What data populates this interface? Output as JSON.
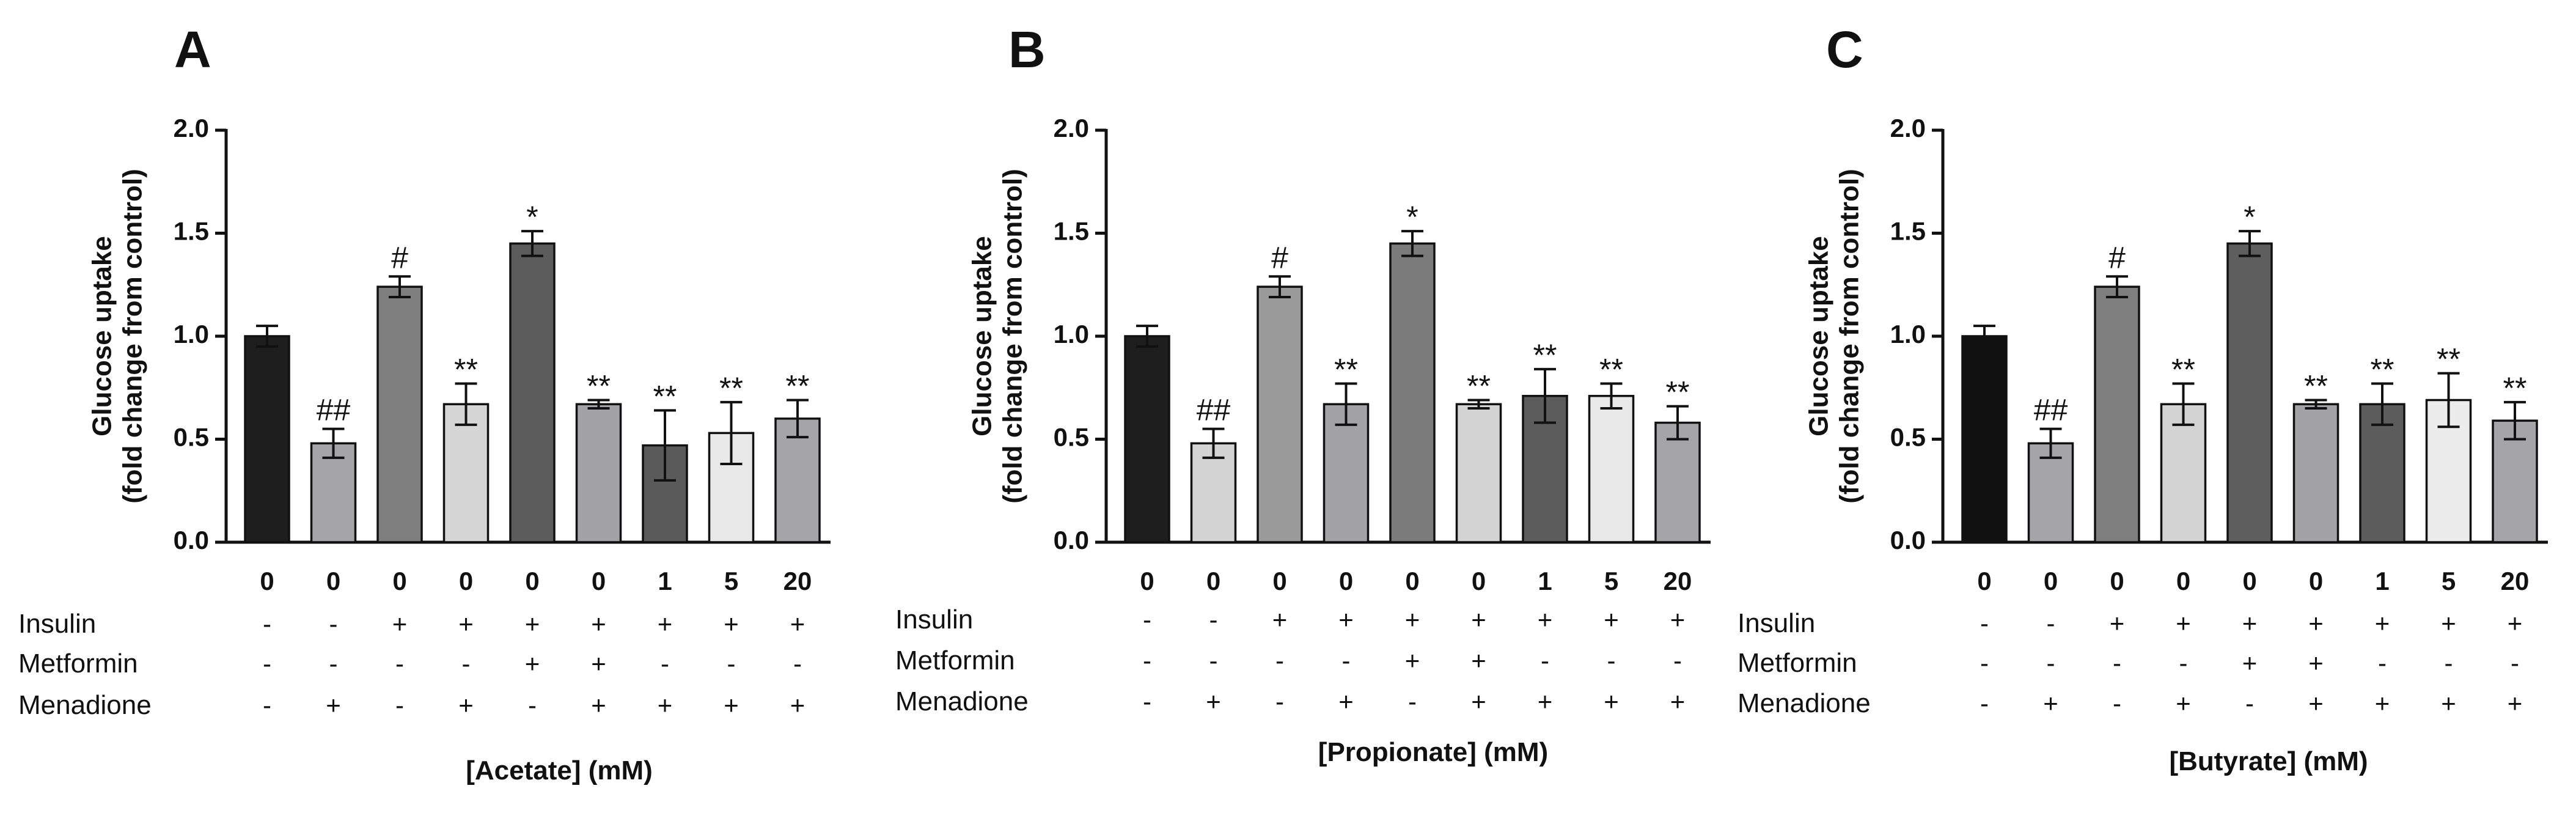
{
  "chart_data": [
    {
      "type": "bar",
      "panel_letter": "A",
      "ylabel_line1": "Glucose uptake",
      "ylabel_line2": "(fold change from control)",
      "ylim": [
        0,
        2.0
      ],
      "yticks": [
        "0.0",
        "0.5",
        "1.0",
        "1.5",
        "2.0"
      ],
      "ytick_values": [
        0,
        0.5,
        1.0,
        1.5,
        2.0
      ],
      "categories": [
        "0",
        "0",
        "0",
        "0",
        "0",
        "0",
        "1",
        "5",
        "20"
      ],
      "values": [
        1.0,
        0.48,
        1.24,
        0.67,
        1.45,
        0.67,
        0.47,
        0.53,
        0.6
      ],
      "errors": [
        0.05,
        0.07,
        0.05,
        0.1,
        0.06,
        0.02,
        0.17,
        0.15,
        0.09
      ],
      "bar_colors": [
        "#1e1e1e",
        "#a5a5a8",
        "#7e7e7e",
        "#d6d6d6",
        "#5c5c5c",
        "#a3a3a6",
        "#5a5a5a",
        "#e8e8e8",
        "#a5a5a8"
      ],
      "significance": [
        "",
        "##",
        "#",
        "**",
        "*",
        "**",
        "**",
        "**",
        "**"
      ],
      "row_labels": [
        "Insulin",
        "Metformin",
        "Menadione"
      ],
      "insulin": [
        "-",
        "-",
        "+",
        "+",
        "+",
        "+",
        "+",
        "+",
        "+"
      ],
      "metformin": [
        "-",
        "-",
        "-",
        "-",
        "+",
        "+",
        "-",
        "-",
        "-"
      ],
      "menadione": [
        "-",
        "+",
        "-",
        "+",
        "-",
        "+",
        "+",
        "+",
        "+"
      ],
      "xlabel": "[Acetate] (mM)"
    },
    {
      "type": "bar",
      "panel_letter": "B",
      "ylabel_line1": "Glucose uptake",
      "ylabel_line2": "(fold change from control)",
      "ylim": [
        0,
        2.0
      ],
      "yticks": [
        "0.0",
        "0.5",
        "1.0",
        "1.5",
        "2.0"
      ],
      "ytick_values": [
        0,
        0.5,
        1.0,
        1.5,
        2.0
      ],
      "categories": [
        "0",
        "0",
        "0",
        "0",
        "0",
        "0",
        "1",
        "5",
        "20"
      ],
      "values": [
        1.0,
        0.48,
        1.24,
        0.67,
        1.45,
        0.67,
        0.71,
        0.71,
        0.58
      ],
      "errors": [
        0.05,
        0.07,
        0.05,
        0.1,
        0.06,
        0.02,
        0.13,
        0.06,
        0.08
      ],
      "bar_colors": [
        "#1e1e1e",
        "#d3d3d3",
        "#9a9a9a",
        "#a3a3a6",
        "#7b7b7b",
        "#d3d3d3",
        "#5c5c5c",
        "#e8e8e8",
        "#a5a5a8"
      ],
      "significance": [
        "",
        "##",
        "#",
        "**",
        "*",
        "**",
        "**",
        "**",
        "**"
      ],
      "row_labels": [
        "Insulin",
        "Metformin",
        "Menadione"
      ],
      "insulin": [
        "-",
        "-",
        "+",
        "+",
        "+",
        "+",
        "+",
        "+",
        "+"
      ],
      "metformin": [
        "-",
        "-",
        "-",
        "-",
        "+",
        "+",
        "-",
        "-",
        "-"
      ],
      "menadione": [
        "-",
        "+",
        "-",
        "+",
        "-",
        "+",
        "+",
        "+",
        "+"
      ],
      "xlabel": "[Propionate] (mM)"
    },
    {
      "type": "bar",
      "panel_letter": "C",
      "ylabel_line1": "Glucose uptake",
      "ylabel_line2": "(fold change from control)",
      "ylim": [
        0,
        2.0
      ],
      "yticks": [
        "0.0",
        "0.5",
        "1.0",
        "1.5",
        "2.0"
      ],
      "ytick_values": [
        0,
        0.5,
        1.0,
        1.5,
        2.0
      ],
      "categories": [
        "0",
        "0",
        "0",
        "0",
        "0",
        "0",
        "1",
        "5",
        "20"
      ],
      "values": [
        1.0,
        0.48,
        1.24,
        0.67,
        1.45,
        0.67,
        0.67,
        0.69,
        0.59
      ],
      "errors": [
        0.05,
        0.07,
        0.05,
        0.1,
        0.06,
        0.02,
        0.1,
        0.13,
        0.09
      ],
      "bar_colors": [
        "#111111",
        "#a5a5a8",
        "#7e7e7e",
        "#d3d3d3",
        "#5e5e5e",
        "#a3a3a6",
        "#5c5c5c",
        "#ececec",
        "#a5a5a8"
      ],
      "significance": [
        "",
        "##",
        "#",
        "**",
        "*",
        "**",
        "**",
        "**",
        "**"
      ],
      "row_labels": [
        "Insulin",
        "Metformin",
        "Menadione"
      ],
      "insulin": [
        "-",
        "-",
        "+",
        "+",
        "+",
        "+",
        "+",
        "+",
        "+"
      ],
      "metformin": [
        "-",
        "-",
        "-",
        "-",
        "+",
        "+",
        "-",
        "-",
        "-"
      ],
      "menadione": [
        "-",
        "+",
        "-",
        "+",
        "-",
        "+",
        "+",
        "+",
        "+"
      ],
      "xlabel": "[Butyrate] (mM)"
    }
  ]
}
